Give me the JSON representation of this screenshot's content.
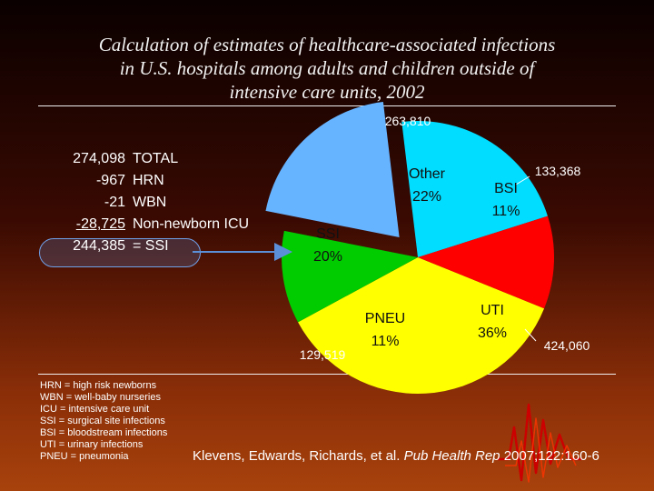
{
  "chart_data": {
    "type": "pie",
    "title": "Calculation of estimates of healthcare-associated infections in U.S. hospitals among adults and children outside of intensive care units, 2002",
    "title_lines": [
      "Calculation of estimates of healthcare-associated infections",
      "in U.S. hospitals among adults and children outside of",
      "intensive care units, 2002"
    ],
    "slices": [
      {
        "label": "UTI",
        "percent": 36,
        "percent_label": "36%",
        "count": "424,060",
        "color": "#ffff00",
        "exploded": false
      },
      {
        "label": "PNEU",
        "percent": 11,
        "percent_label": "11%",
        "count": "129,519",
        "color": "#00cc00",
        "exploded": false
      },
      {
        "label": "SSI",
        "percent": 20,
        "percent_label": "20%",
        "count": "244,385",
        "color": "#66b3ff",
        "exploded": true
      },
      {
        "label": "Other",
        "percent": 22,
        "percent_label": "22%",
        "count": "263,810",
        "color": "#00ddff",
        "exploded": false
      },
      {
        "label": "BSI",
        "percent": 11,
        "percent_label": "11%",
        "count": "133,368",
        "color": "#ff0000",
        "exploded": false
      }
    ]
  },
  "calculation": {
    "rows": [
      {
        "num": "274,098",
        "label": "TOTAL",
        "underline": false
      },
      {
        "num": "-967",
        "label": "HRN",
        "underline": false
      },
      {
        "num": "-21",
        "label": "WBN",
        "underline": false
      },
      {
        "num": "-28,725",
        "label": "Non-newborn ICU",
        "underline": true
      },
      {
        "num": "244,385",
        "label": "= SSI",
        "underline": false
      }
    ]
  },
  "legend": [
    "HRN = high risk newborns",
    "WBN = well-baby nurseries",
    "ICU = intensive care unit",
    "SSI = surgical site infections",
    "BSI = bloodstream infections",
    "UTI = urinary infections",
    "PNEU = pneumonia"
  ],
  "citation": {
    "authors": "Klevens, Edwards, Richards, et al.",
    "journal": "Pub Health Rep",
    "ref": "2007;122:160-6"
  },
  "colors": {
    "arrow": "#5b8fd8",
    "logo": "#cc0000"
  }
}
